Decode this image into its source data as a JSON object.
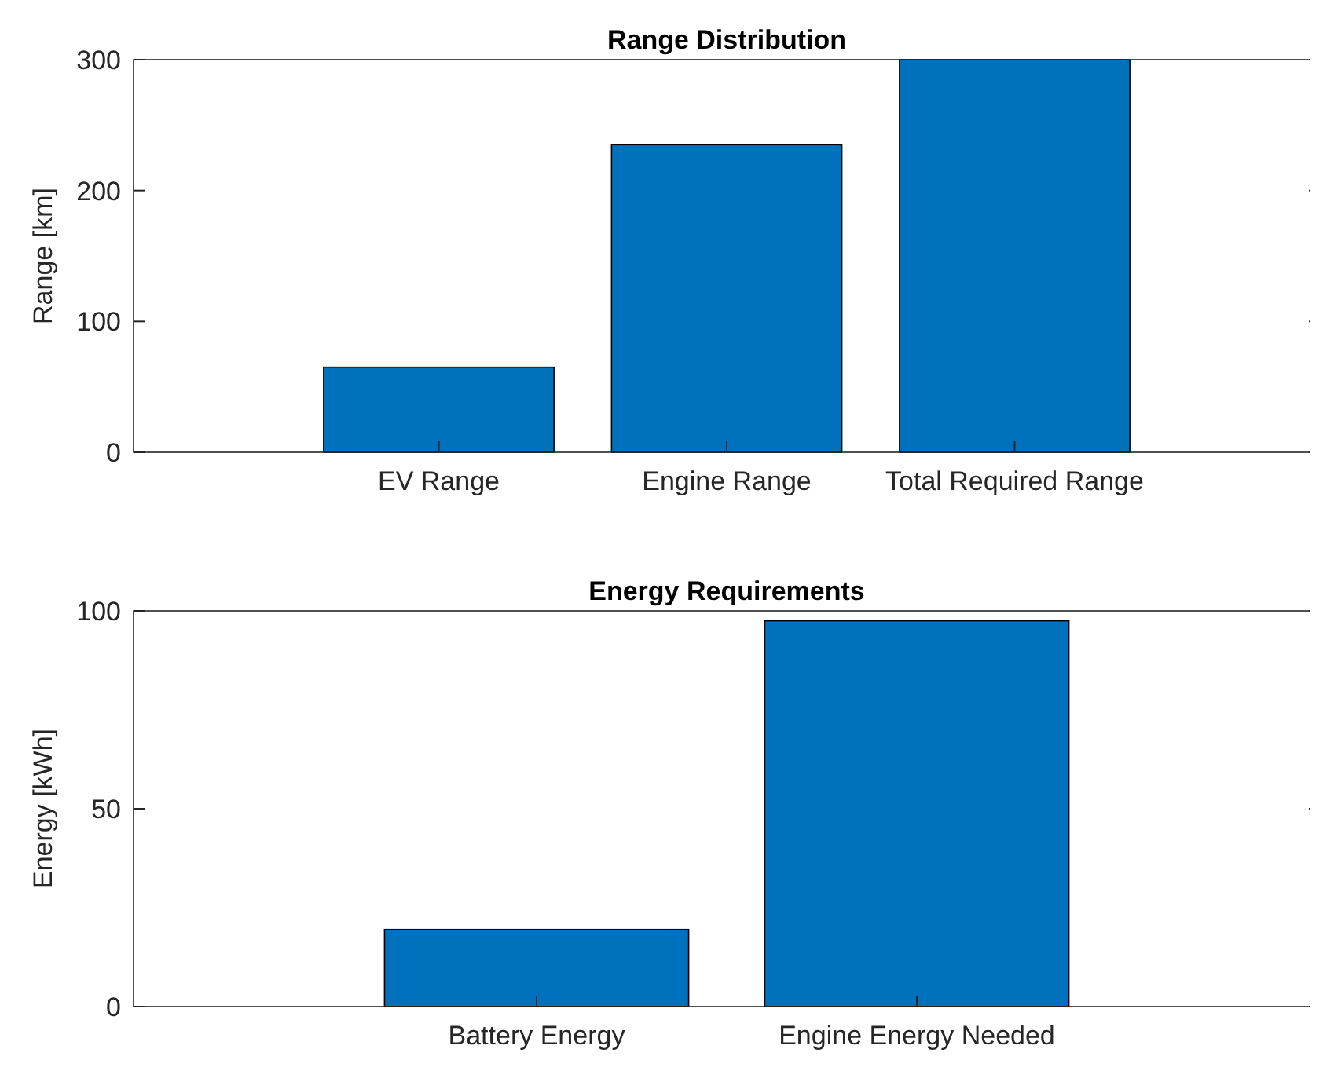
{
  "chart_data": [
    {
      "type": "bar",
      "title": "Range Distribution",
      "ylabel": "Range [km]",
      "categories": [
        "EV Range",
        "Engine Range",
        "Total Required Range"
      ],
      "values": [
        65,
        235,
        300
      ],
      "color": "#0072bd",
      "ylim": [
        0,
        300
      ],
      "yticks": [
        0,
        100,
        200,
        300
      ],
      "grid": false
    },
    {
      "type": "bar",
      "title": "Energy Requirements",
      "ylabel": "Energy [kWh]",
      "categories": [
        "Battery Energy",
        "Engine Energy Needed"
      ],
      "values": [
        19.5,
        97.5
      ],
      "color": "#0072bd",
      "ylim": [
        0,
        100
      ],
      "yticks": [
        0,
        50,
        100
      ],
      "grid": false
    }
  ]
}
